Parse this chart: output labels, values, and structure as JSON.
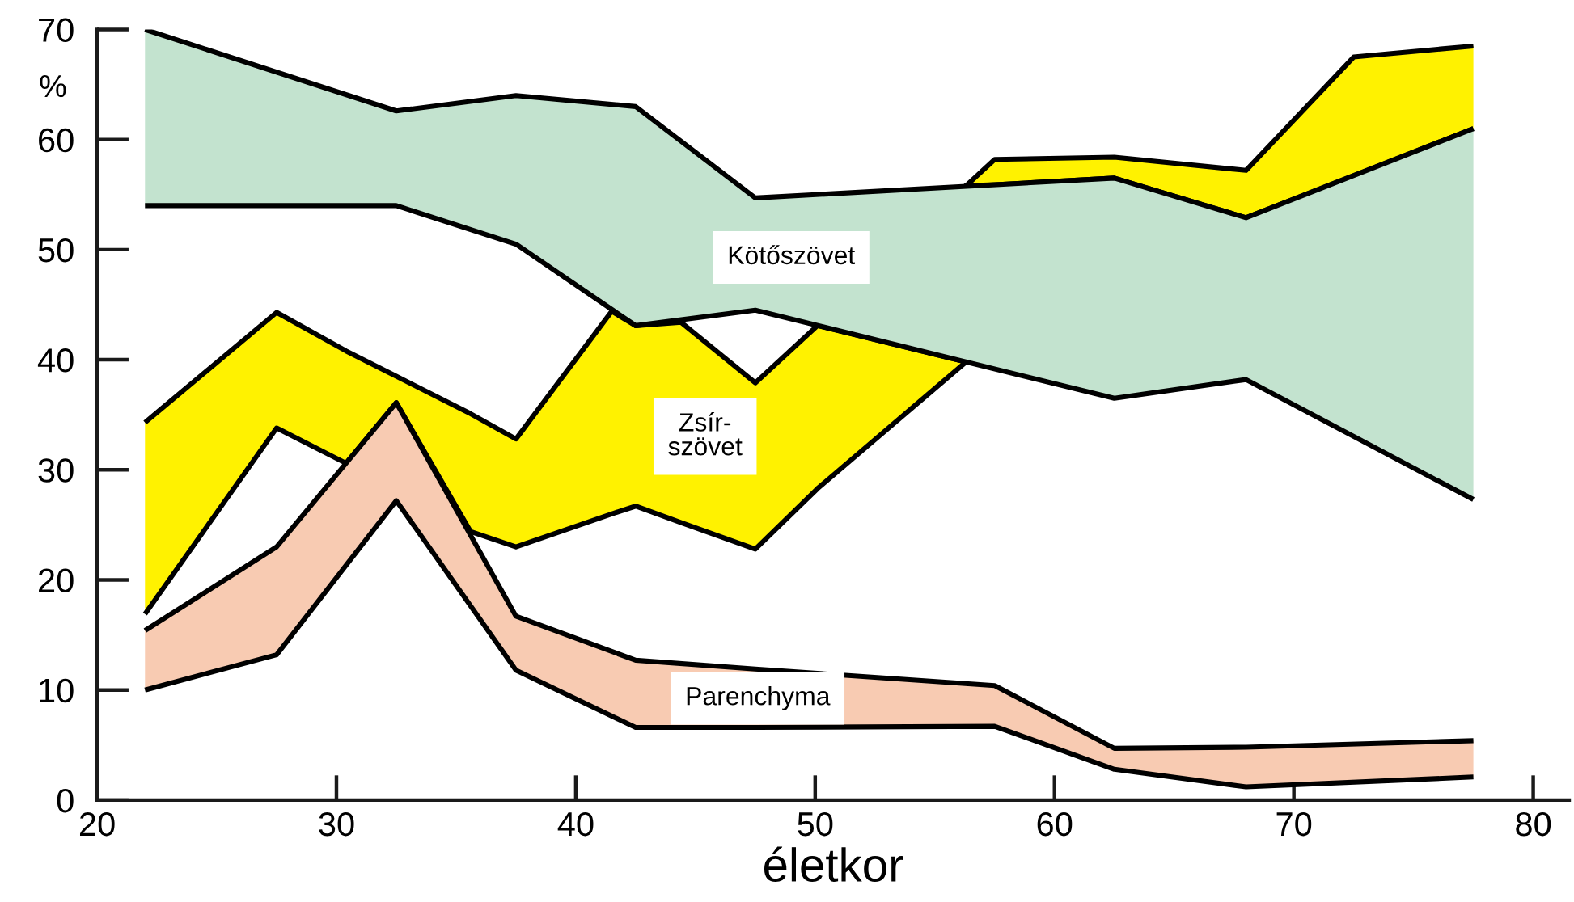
{
  "chart_data": {
    "type": "area",
    "xlabel": "életkor",
    "ylabel": "%",
    "xlim": [
      20,
      81.5
    ],
    "ylim": [
      0,
      70
    ],
    "xticks": [
      20,
      30,
      40,
      50,
      60,
      70,
      80
    ],
    "yticks": [
      0,
      10,
      20,
      30,
      40,
      50,
      60,
      70
    ],
    "series": [
      {
        "name": "Zsír-\nszövet",
        "color": "#fff200",
        "x": [
          22,
          27.5,
          30.4,
          32.5,
          35.6,
          37.5,
          41.5,
          42.5,
          44.4,
          47.5,
          50.1,
          56.3,
          56.3,
          57.5,
          62.5,
          68,
          72.5,
          77.5
        ],
        "values": [
          34.3,
          44.3,
          40.8,
          38.5,
          35.1,
          32.8,
          44.4,
          43.1,
          43.4,
          37.9,
          43.1,
          39.8,
          55.8,
          58.2,
          58.4,
          57.2,
          67.5,
          68.5
        ]
      },
      {
        "type": "line",
        "color": "#000000",
        "x": [
          22,
          27.5,
          30.4,
          32.5,
          35.6,
          37.5,
          41.5,
          42.5,
          44.4,
          47.5,
          50.1,
          56.3,
          56.3,
          57.5,
          62.5,
          68,
          72.5,
          77.5
        ],
        "values": [
          16.9,
          33.8,
          30.6,
          36.1,
          24.4,
          23.0,
          26.0,
          26.7,
          25.2,
          22.8,
          28.3,
          39.8,
          55.8,
          55.9,
          56.5,
          52.9,
          56.7,
          61.0
        ]
      },
      {
        "name": "Kötőszövet",
        "color": "#c3e3cf",
        "x": [
          22,
          32.5,
          37.5,
          42.5,
          47.5,
          62.5,
          68,
          77.5
        ],
        "values": [
          70.0,
          62.6,
          64.0,
          63.0,
          54.7,
          56.5,
          52.9,
          61.0
        ]
      },
      {
        "type": "line",
        "color": "#000000",
        "x": [
          22,
          32.5,
          37.5,
          42.5,
          47.5,
          62.5,
          68,
          77.5
        ],
        "values": [
          54.0,
          54.0,
          50.5,
          43.1,
          44.5,
          36.5,
          38.2,
          27.3
        ]
      },
      {
        "name": "Parenchyma",
        "color": "#f8cbb2",
        "x": [
          22,
          27.5,
          32.5,
          37.5,
          42.5,
          47.5,
          57.5,
          62.5,
          68,
          77.5
        ],
        "values": [
          15.4,
          23.0,
          36.1,
          16.7,
          12.7,
          11.9,
          10.4,
          4.7,
          4.8,
          5.4
        ]
      },
      {
        "type": "line",
        "color": "#000000",
        "x": [
          22,
          27.5,
          32.5,
          37.5,
          42.5,
          47.5,
          57.5,
          62.5,
          68,
          77.5
        ],
        "values": [
          10.0,
          13.2,
          27.2,
          11.8,
          6.6,
          6.6,
          6.7,
          2.8,
          1.2,
          2.1
        ]
      }
    ]
  }
}
